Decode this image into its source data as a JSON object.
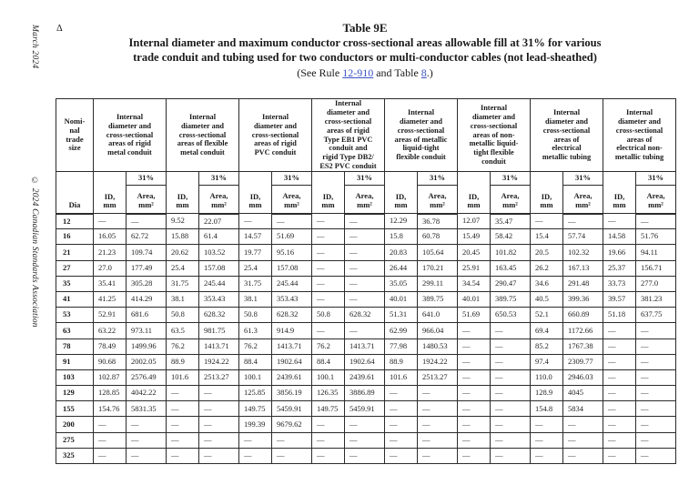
{
  "page": {
    "edition_vertical": "March 2024",
    "copyright_vertical": "© 2024 Canadian Standards Association",
    "delta_marker": "Δ",
    "background_color": "#ffffff",
    "text_color": "#1a1a1a",
    "link_color": "#3a52c4",
    "border_color": "#2b2b2b"
  },
  "title": {
    "table_number": "Table 9E",
    "heading_line1": "Internal diameter and maximum conductor cross-sectional areas allowable fill at 31% for various",
    "heading_line2": "trade conduit and tubing used for two conductors or multi-conductor cables (not lead-sheathed)",
    "see_prefix": "(See Rule ",
    "rule_link_label": "12-910",
    "see_middle": " and Table ",
    "table_link_label": "8",
    "see_suffix": ".)"
  },
  "table": {
    "corner_header": "Nomi-\nnal\ntrade\nsize",
    "dia_header": "Dia",
    "percent_header": "31%",
    "id_header": "ID,\nmm",
    "area_header": "Area,\nmm²",
    "group_headers": [
      "Internal\ndiameter and\ncross-sectional\nareas of rigid\nmetal conduit",
      "Internal\ndiameter and\ncross-sectional\nareas of flexible\nmetal conduit",
      "Internal\ndiameter and\ncross-sectional\nareas of rigid\nPVC conduit",
      "Internal\ndiameter and\ncross-sectional\nareas of rigid\nType EB1 PVC\nconduit and\nrigid Type DB2/\nES2 PVC conduit",
      "Internal\ndiameter and\ncross-sectional\nareas of metallic\nliquid-tight\nflexible conduit",
      "Internal\ndiameter and\ncross-sectional\nareas of non-\nmetallic liquid-\ntight flexible\nconduit",
      "Internal\ndiameter and\ncross-sectional\nareas of\nelectrical\nmetallic tubing",
      "Internal\ndiameter and\ncross-sectional\nareas of\nelectrical non-\nmetallic tubing"
    ],
    "rows": [
      {
        "dia": "12",
        "cells": [
          "—",
          "—",
          "9.52",
          "22.07",
          "—",
          "—",
          "—",
          "—",
          "12.29",
          "36.78",
          "12.07",
          "35.47",
          "—",
          "—",
          "—",
          "—"
        ]
      },
      {
        "dia": "16",
        "cells": [
          "16.05",
          "62.72",
          "15.88",
          "61.4",
          "14.57",
          "51.69",
          "—",
          "—",
          "15.8",
          "60.78",
          "15.49",
          "58.42",
          "15.4",
          "57.74",
          "14.58",
          "51.76"
        ]
      },
      {
        "dia": "21",
        "cells": [
          "21.23",
          "109.74",
          "20.62",
          "103.52",
          "19.77",
          "95.16",
          "—",
          "—",
          "20.83",
          "105.64",
          "20.45",
          "101.82",
          "20.5",
          "102.32",
          "19.66",
          "94.11"
        ]
      },
      {
        "dia": "27",
        "cells": [
          "27.0",
          "177.49",
          "25.4",
          "157.08",
          "25.4",
          "157.08",
          "—",
          "—",
          "26.44",
          "170.21",
          "25.91",
          "163.45",
          "26.2",
          "167.13",
          "25.37",
          "156.71"
        ]
      },
      {
        "dia": "35",
        "cells": [
          "35.41",
          "305.28",
          "31.75",
          "245.44",
          "31.75",
          "245.44",
          "—",
          "—",
          "35.05",
          "299.11",
          "34.54",
          "290.47",
          "34.6",
          "291.48",
          "33.73",
          "277.0"
        ]
      },
      {
        "dia": "41",
        "cells": [
          "41.25",
          "414.29",
          "38.1",
          "353.43",
          "38.1",
          "353.43",
          "—",
          "—",
          "40.01",
          "389.75",
          "40.01",
          "389.75",
          "40.5",
          "399.36",
          "39.57",
          "381.23"
        ]
      },
      {
        "dia": "53",
        "cells": [
          "52.91",
          "681.6",
          "50.8",
          "628.32",
          "50.8",
          "628.32",
          "50.8",
          "628.32",
          "51.31",
          "641.0",
          "51.69",
          "650.53",
          "52.1",
          "660.89",
          "51.18",
          "637.75"
        ]
      },
      {
        "dia": "63",
        "cells": [
          "63.22",
          "973.11",
          "63.5",
          "981.75",
          "61.3",
          "914.9",
          "—",
          "—",
          "62.99",
          "966.04",
          "—",
          "—",
          "69.4",
          "1172.66",
          "—",
          "—"
        ]
      },
      {
        "dia": "78",
        "cells": [
          "78.49",
          "1499.96",
          "76.2",
          "1413.71",
          "76.2",
          "1413.71",
          "76.2",
          "1413.71",
          "77.98",
          "1480.53",
          "—",
          "—",
          "85.2",
          "1767.38",
          "—",
          "—"
        ]
      },
      {
        "dia": "91",
        "cells": [
          "90.68",
          "2002.05",
          "88.9",
          "1924.22",
          "88.4",
          "1902.64",
          "88.4",
          "1902.64",
          "88.9",
          "1924.22",
          "—",
          "—",
          "97.4",
          "2309.77",
          "—",
          "—"
        ]
      },
      {
        "dia": "103",
        "cells": [
          "102.87",
          "2576.49",
          "101.6",
          "2513.27",
          "100.1",
          "2439.61",
          "100.1",
          "2439.61",
          "101.6",
          "2513.27",
          "—",
          "—",
          "110.0",
          "2946.03",
          "—",
          "—"
        ]
      },
      {
        "dia": "129",
        "cells": [
          "128.85",
          "4042.22",
          "—",
          "—",
          "125.85",
          "3856.19",
          "126.35",
          "3886.89",
          "—",
          "—",
          "—",
          "—",
          "128.9",
          "4045",
          "—",
          "—"
        ]
      },
      {
        "dia": "155",
        "cells": [
          "154.76",
          "5831.35",
          "—",
          "—",
          "149.75",
          "5459.91",
          "149.75",
          "5459.91",
          "—",
          "—",
          "—",
          "—",
          "154.8",
          "5834",
          "—",
          "—"
        ]
      },
      {
        "dia": "200",
        "cells": [
          "—",
          "—",
          "—",
          "—",
          "199.39",
          "9679.62",
          "—",
          "—",
          "—",
          "—",
          "—",
          "—",
          "—",
          "—",
          "—",
          "—"
        ]
      },
      {
        "dia": "275",
        "cells": [
          "—",
          "—",
          "—",
          "—",
          "—",
          "—",
          "—",
          "—",
          "—",
          "—",
          "—",
          "—",
          "—",
          "—",
          "—",
          "—"
        ]
      },
      {
        "dia": "325",
        "cells": [
          "—",
          "—",
          "—",
          "—",
          "—",
          "—",
          "—",
          "—",
          "—",
          "—",
          "—",
          "—",
          "—",
          "—",
          "—",
          "—"
        ]
      }
    ]
  }
}
